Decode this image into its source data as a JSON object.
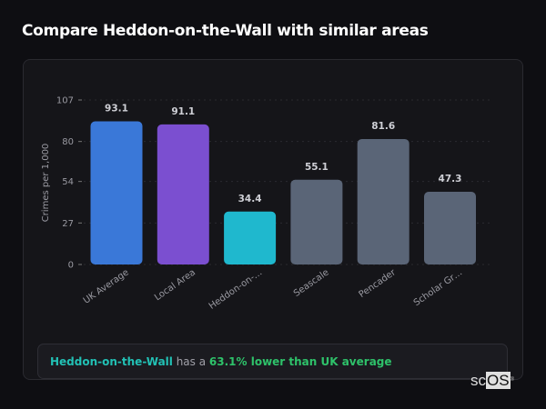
{
  "title": "Compare Heddon-on-the-Wall with similar areas",
  "chart_data": {
    "type": "bar",
    "categories": [
      "UK Average",
      "Local Area",
      "Heddon-on-…",
      "Seascale",
      "Pencader",
      "Scholar Gr…"
    ],
    "values": [
      93.1,
      91.1,
      34.4,
      55.1,
      81.6,
      47.3
    ],
    "value_labels": [
      "93.1",
      "91.1",
      "34.4",
      "55.1",
      "81.6",
      "47.3"
    ],
    "colors": [
      "#3a78d8",
      "#7b4fd0",
      "#1fb8ce",
      "#5a6577",
      "#5a6577",
      "#5a6577"
    ],
    "ylabel": "Crimes per 1,000",
    "ylim": [
      0,
      107
    ],
    "yticks": [
      0,
      27,
      54,
      80,
      107
    ],
    "grid": true,
    "legend": "none"
  },
  "summary": {
    "place": "Heddon-on-the-Wall",
    "middle": " has a ",
    "delta": "63.1% lower than UK average"
  },
  "logo": {
    "text_a": "sc",
    "text_b": "OS",
    "mark": "®"
  }
}
